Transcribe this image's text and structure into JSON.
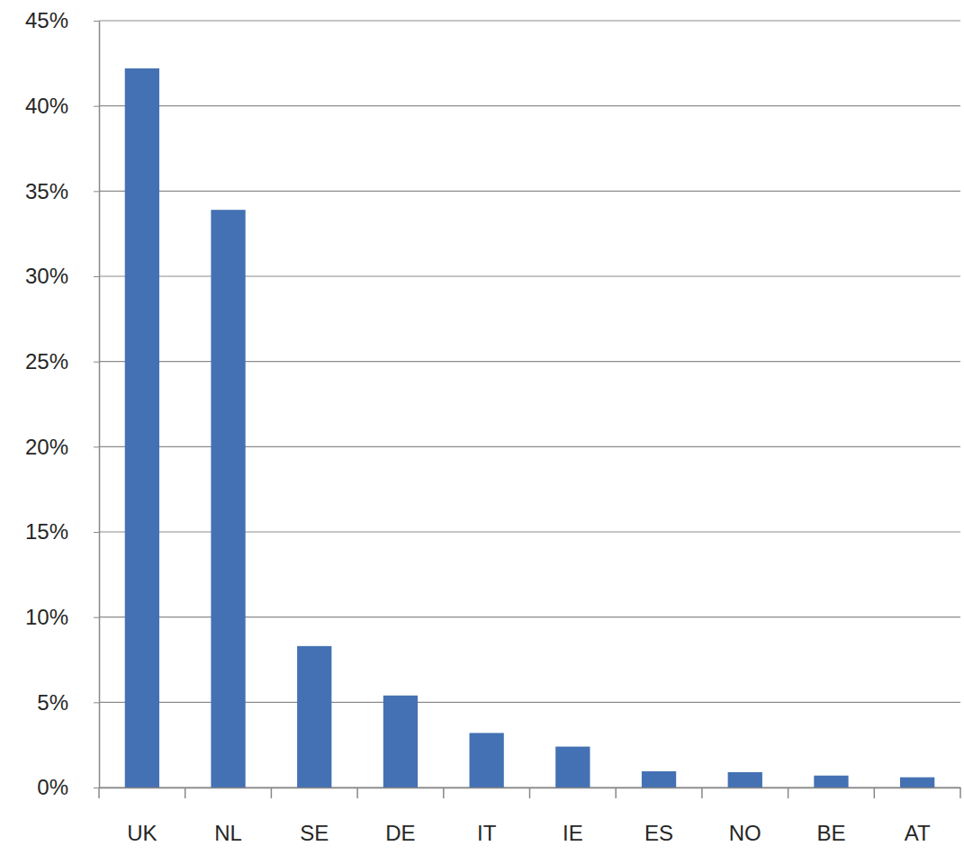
{
  "chart_data": {
    "type": "bar",
    "categories": [
      "UK",
      "NL",
      "SE",
      "DE",
      "IT",
      "IE",
      "ES",
      "NO",
      "BE",
      "AT"
    ],
    "values": [
      42.2,
      33.9,
      8.3,
      5.4,
      3.2,
      2.4,
      0.95,
      0.9,
      0.7,
      0.6
    ],
    "color": "#4471b3",
    "ylim": [
      0,
      45
    ],
    "yticks": [
      {
        "value": 0,
        "label": "0%"
      },
      {
        "value": 5,
        "label": "5%"
      },
      {
        "value": 10,
        "label": "10%"
      },
      {
        "value": 15,
        "label": "15%"
      },
      {
        "value": 20,
        "label": "20%"
      },
      {
        "value": 25,
        "label": "25%"
      },
      {
        "value": 30,
        "label": "30%"
      },
      {
        "value": 35,
        "label": "35%"
      },
      {
        "value": 40,
        "label": "40%"
      },
      {
        "value": 45,
        "label": "45%"
      }
    ],
    "grid": true
  }
}
